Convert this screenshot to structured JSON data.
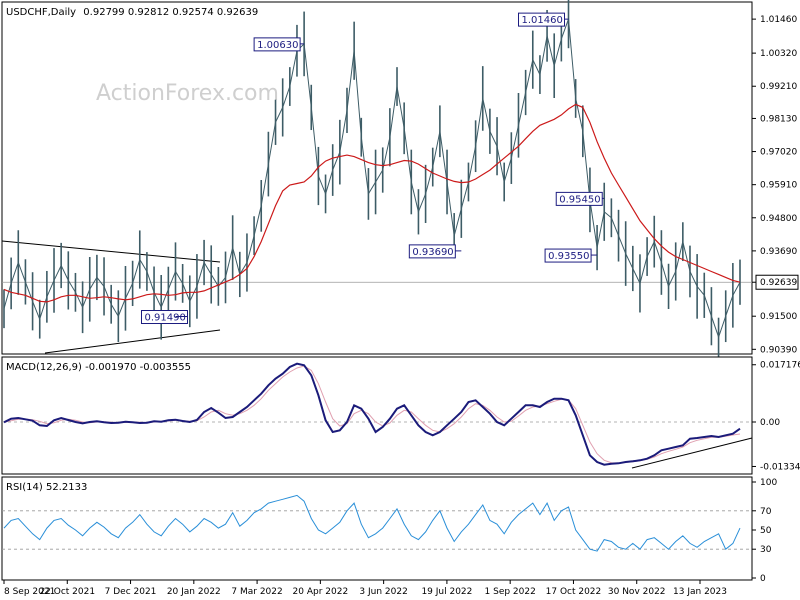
{
  "header": {
    "symbol": "USDCHF,Daily",
    "ohlc": "0.92799 0.92812 0.92574 0.92639"
  },
  "watermark": "ActionForex.com",
  "chart_data": [
    {
      "type": "line",
      "panel": "price",
      "title": "USDCHF,Daily 0.92799 0.92812 0.92574 0.92639",
      "y_range": [
        0.903,
        1.019
      ],
      "y_ticks": [
        "1.01460",
        "1.00320",
        "0.99210",
        "0.98130",
        "0.97020",
        "0.95910",
        "0.94800",
        "0.93690",
        "0.92639",
        "0.91500",
        "0.90390"
      ],
      "current_price": "0.92639",
      "x_labels": [
        "8 Sep 2021",
        "22 Oct 2021",
        "7 Dec 2021",
        "20 Jan 2022",
        "7 Mar 2022",
        "20 Apr 2022",
        "3 Jun 2022",
        "19 Jul 2022",
        "1 Sep 2022",
        "17 Oct 2022",
        "30 Nov 2022",
        "13 Jan 2023"
      ],
      "series": [
        {
          "name": "",
          "values": [
            0.9175,
            0.926,
            0.933,
            0.9265,
            0.92,
            0.914,
            0.9215,
            0.927,
            0.932,
            0.927,
            0.923,
            0.918,
            0.924,
            0.928,
            0.925,
            0.919,
            0.915,
            0.921,
            0.926,
            0.934,
            0.93,
            0.923,
            0.918,
            0.924,
            0.93,
            0.926,
            0.92,
            0.925,
            0.933,
            0.929,
            0.925,
            0.928,
            0.938,
            0.929,
            0.933,
            0.942,
            0.952,
            0.966,
            0.98,
            0.985,
            0.992,
            1.004,
            1.0063,
            0.985,
            0.962,
            0.956,
            0.964,
            0.97,
            0.984,
            1.004,
            0.975,
            0.956,
            0.96,
            0.964,
            0.975,
            0.992,
            0.978,
            0.96,
            0.95,
            0.956,
            0.965,
            0.977,
            0.96,
            0.942,
            0.951,
            0.96,
            0.972,
            0.988,
            0.977,
            0.972,
            0.96,
            0.968,
            0.979,
            0.99,
            1.001,
            0.996,
            1.009,
            0.999,
            1.008,
            1.0146,
            0.988,
            0.977,
            0.954,
            0.938,
            0.95,
            0.948,
            0.942,
            0.936,
            0.931,
            0.926,
            0.935,
            0.94,
            0.933,
            0.925,
            0.93,
            0.94,
            0.93,
            0.925,
            0.922,
            0.915,
            0.908,
            0.915,
            0.922,
            0.9264
          ]
        },
        {
          "name": "",
          "values": [
            0.924,
            0.923,
            0.9225,
            0.922,
            0.921,
            0.92,
            0.9198,
            0.9205,
            0.9215,
            0.922,
            0.922,
            0.9215,
            0.921,
            0.9212,
            0.9215,
            0.9212,
            0.9208,
            0.9205,
            0.9208,
            0.9215,
            0.9222,
            0.9225,
            0.9223,
            0.922,
            0.9222,
            0.9228,
            0.923,
            0.923,
            0.9235,
            0.9245,
            0.9255,
            0.9265,
            0.9275,
            0.929,
            0.931,
            0.935,
            0.94,
            0.946,
            0.952,
            0.957,
            0.959,
            0.9595,
            0.96,
            0.962,
            0.965,
            0.967,
            0.968,
            0.9685,
            0.969,
            0.9685,
            0.9675,
            0.9665,
            0.9658,
            0.9655,
            0.9658,
            0.9665,
            0.9672,
            0.967,
            0.966,
            0.9645,
            0.963,
            0.962,
            0.961,
            0.9602,
            0.9598,
            0.96,
            0.961,
            0.9625,
            0.964,
            0.966,
            0.968,
            0.97,
            0.972,
            0.9745,
            0.977,
            0.979,
            0.98,
            0.981,
            0.9825,
            0.9845,
            0.986,
            0.985,
            0.98,
            0.9735,
            0.968,
            0.963,
            0.959,
            0.955,
            0.951,
            0.947,
            0.944,
            0.941,
            0.9385,
            0.9365,
            0.935,
            0.934,
            0.933,
            0.932,
            0.931,
            0.93,
            0.929,
            0.928,
            0.927,
            0.9264
          ]
        }
      ],
      "annotations": [
        "1.00630",
        "1.01460",
        "0.93690",
        "0.95450",
        "0.93550",
        "0.91490"
      ]
    },
    {
      "type": "line",
      "panel": "macd",
      "title": "MACD(12,26,9) -0.001970 -0.003555",
      "y_range": [
        -0.015,
        0.018
      ],
      "y_ticks": [
        "0.017176",
        "0.00",
        "-0.01334"
      ],
      "series": [
        {
          "name": "",
          "values": [
            -0.0001,
            0.001,
            0.0012,
            0.0008,
            0.0004,
            -0.001,
            -0.0012,
            0.0005,
            0.0012,
            0.0006,
            0.0,
            -0.0004,
            0.0,
            0.0002,
            -0.0001,
            -0.0003,
            -0.0002,
            0.0001,
            -0.0001,
            -0.0003,
            -0.0002,
            0.0002,
            0.0001,
            0.0005,
            0.0007,
            0.0003,
            0.0,
            0.0006,
            0.003,
            0.0042,
            0.0028,
            0.0012,
            0.0015,
            0.003,
            0.0045,
            0.0065,
            0.0085,
            0.011,
            0.013,
            0.0145,
            0.0165,
            0.0175,
            0.017,
            0.014,
            0.008,
            0.0005,
            -0.003,
            -0.0025,
            0.0,
            0.005,
            0.004,
            0.001,
            -0.003,
            -0.0015,
            0.001,
            0.004,
            0.005,
            0.002,
            -0.001,
            -0.003,
            -0.004,
            -0.003,
            -0.001,
            0.001,
            0.003,
            0.006,
            0.0065,
            0.0045,
            0.0025,
            0.0,
            -0.001,
            0.001,
            0.003,
            0.005,
            0.005,
            0.0045,
            0.006,
            0.007,
            0.007,
            0.0065,
            0.002,
            -0.004,
            -0.01,
            -0.012,
            -0.0128,
            -0.0125,
            -0.0124,
            -0.012,
            -0.0118,
            -0.0115,
            -0.011,
            -0.01,
            -0.0085,
            -0.008,
            -0.0075,
            -0.007,
            -0.005,
            -0.0048,
            -0.0045,
            -0.0042,
            -0.0045,
            -0.004,
            -0.0035,
            -0.002
          ]
        },
        {
          "name": "",
          "values": [
            0.0,
            0.0004,
            0.0008,
            0.0009,
            0.0007,
            0.0002,
            -0.0005,
            -0.0002,
            0.0005,
            0.0008,
            0.0005,
            0.0,
            -0.0002,
            0.0,
            0.0001,
            -0.0001,
            -0.0002,
            -0.0001,
            0.0,
            -0.0001,
            -0.0002,
            0.0,
            0.0002,
            0.0003,
            0.0005,
            0.0004,
            0.0002,
            0.0004,
            0.0015,
            0.003,
            0.0035,
            0.0025,
            0.002,
            0.0025,
            0.0035,
            0.005,
            0.007,
            0.0095,
            0.0115,
            0.0135,
            0.015,
            0.0162,
            0.0168,
            0.0155,
            0.0115,
            0.006,
            0.001,
            -0.0012,
            -0.0005,
            0.0025,
            0.0035,
            0.0025,
            0.0,
            -0.0012,
            -0.0003,
            0.002,
            0.0035,
            0.003,
            0.001,
            -0.001,
            -0.0025,
            -0.003,
            -0.002,
            -0.0005,
            0.0015,
            0.004,
            0.0055,
            0.005,
            0.0035,
            0.0015,
            0.0,
            0.0002,
            0.0018,
            0.0035,
            0.0045,
            0.0048,
            0.0055,
            0.0062,
            0.0068,
            0.0066,
            0.004,
            -0.001,
            -0.006,
            -0.0095,
            -0.0115,
            -0.0122,
            -0.0123,
            -0.0121,
            -0.0119,
            -0.0116,
            -0.0112,
            -0.0105,
            -0.0095,
            -0.0088,
            -0.0082,
            -0.0075,
            -0.0062,
            -0.0055,
            -0.005,
            -0.0046,
            -0.0046,
            -0.0043,
            -0.0039,
            -0.0036
          ]
        }
      ]
    },
    {
      "type": "line",
      "panel": "rsi",
      "title": "RSI(14) 52.2133",
      "y_range": [
        0,
        100
      ],
      "y_ticks": [
        "100",
        "70",
        "50",
        "30",
        "0"
      ],
      "levels": [
        70,
        30
      ],
      "series": [
        {
          "name": "",
          "values": [
            52,
            60,
            62,
            54,
            46,
            40,
            52,
            60,
            62,
            55,
            50,
            44,
            52,
            58,
            53,
            46,
            42,
            52,
            58,
            66,
            56,
            48,
            44,
            54,
            62,
            56,
            48,
            54,
            62,
            58,
            52,
            56,
            68,
            54,
            60,
            68,
            72,
            78,
            80,
            82,
            84,
            86,
            80,
            62,
            50,
            46,
            52,
            58,
            70,
            78,
            56,
            42,
            46,
            52,
            62,
            72,
            56,
            44,
            40,
            48,
            60,
            70,
            52,
            38,
            48,
            56,
            66,
            76,
            60,
            56,
            46,
            58,
            66,
            72,
            78,
            66,
            78,
            60,
            70,
            74,
            50,
            40,
            30,
            28,
            40,
            38,
            32,
            30,
            36,
            30,
            40,
            42,
            36,
            30,
            38,
            44,
            36,
            32,
            38,
            42,
            46,
            30,
            36,
            52
          ]
        }
      ]
    }
  ]
}
